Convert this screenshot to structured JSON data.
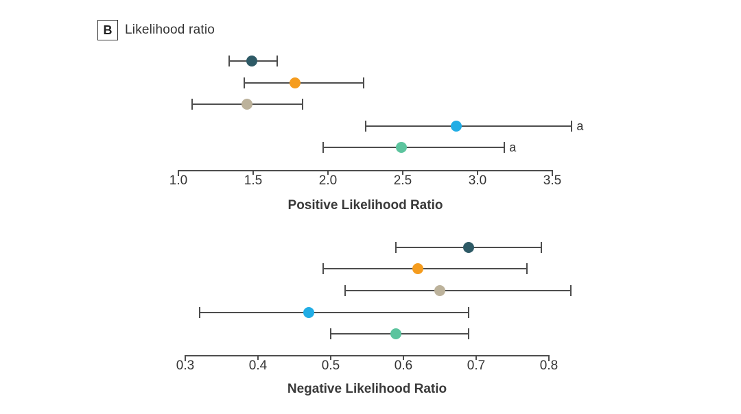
{
  "figure": {
    "panel_label": "B",
    "panel_title": "Likelihood ratio"
  },
  "colors": {
    "text": "#333333",
    "axis": "#4d4d4d",
    "errorbar": "#4d4d4d"
  },
  "chart_data": [
    {
      "type": "scatter",
      "subtype": "forest-plot-point-estimates-with-95ci",
      "title": "Positive Likelihood Ratio",
      "xlabel": "Positive Likelihood Ratio",
      "xlim": [
        1.0,
        3.5
      ],
      "xticks": [
        1.0,
        1.5,
        2.0,
        2.5,
        3.0,
        3.5
      ],
      "xtick_labels": [
        "1.0",
        "1.5",
        "2.0",
        "2.5",
        "3.0",
        "3.5"
      ],
      "grid": false,
      "legend": "none",
      "series": [
        {
          "name": "dark-teal",
          "color": "#2E5A66",
          "value": 1.49,
          "ci_low": 1.34,
          "ci_high": 1.66,
          "footnote": ""
        },
        {
          "name": "orange",
          "color": "#F59C1E",
          "value": 1.78,
          "ci_low": 1.44,
          "ci_high": 2.24,
          "footnote": ""
        },
        {
          "name": "tan",
          "color": "#BCB29B",
          "value": 1.46,
          "ci_low": 1.09,
          "ci_high": 1.83,
          "footnote": ""
        },
        {
          "name": "light-blue",
          "color": "#21ADE5",
          "value": 2.86,
          "ci_low": 2.25,
          "ci_high": 3.63,
          "footnote": "a"
        },
        {
          "name": "green",
          "color": "#5CC49E",
          "value": 2.49,
          "ci_low": 1.97,
          "ci_high": 3.18,
          "footnote": "a"
        }
      ]
    },
    {
      "type": "scatter",
      "subtype": "forest-plot-point-estimates-with-95ci",
      "title": "Negative Likelihood Ratio",
      "xlabel": "Negative Likelihood Ratio",
      "xlim": [
        0.3,
        0.8
      ],
      "xticks": [
        0.3,
        0.4,
        0.5,
        0.6,
        0.7,
        0.8
      ],
      "xtick_labels": [
        "0.3",
        "0.4",
        "0.5",
        "0.6",
        "0.7",
        "0.8"
      ],
      "grid": false,
      "legend": "none",
      "series": [
        {
          "name": "dark-teal",
          "color": "#2E5A66",
          "value": 0.69,
          "ci_low": 0.59,
          "ci_high": 0.79,
          "footnote": ""
        },
        {
          "name": "orange",
          "color": "#F59C1E",
          "value": 0.62,
          "ci_low": 0.49,
          "ci_high": 0.77,
          "footnote": ""
        },
        {
          "name": "tan",
          "color": "#BCB29B",
          "value": 0.65,
          "ci_low": 0.52,
          "ci_high": 0.83,
          "footnote": ""
        },
        {
          "name": "light-blue",
          "color": "#21ADE5",
          "value": 0.47,
          "ci_low": 0.32,
          "ci_high": 0.69,
          "footnote": ""
        },
        {
          "name": "green",
          "color": "#5CC49E",
          "value": 0.59,
          "ci_low": 0.5,
          "ci_high": 0.69,
          "footnote": ""
        }
      ]
    }
  ]
}
